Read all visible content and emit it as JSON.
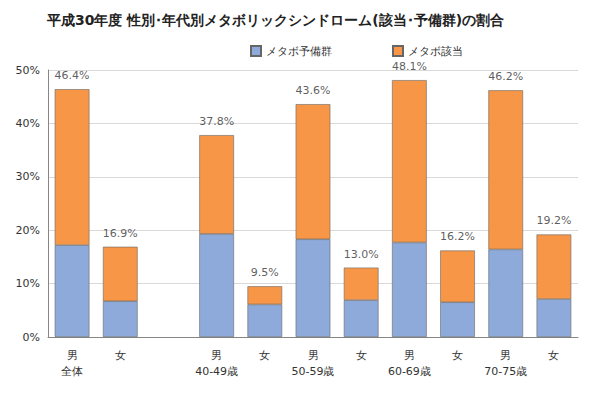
{
  "chart_data": {
    "type": "bar",
    "title": "平成30年度 性別･年代別メタボリックシンドローム(該当･予備群)の割合",
    "categories": [
      "男\n全体",
      "女",
      null,
      "男\n40-49歳",
      "女",
      "男\n50-59歳",
      "女",
      "男\n60-69歳",
      "女",
      "男\n70-75歳",
      "女"
    ],
    "series": [
      {
        "name": "メタボ予備群",
        "color": "#8eaadb",
        "values": [
          17.2,
          6.7,
          null,
          19.3,
          6.1,
          18.3,
          6.9,
          17.7,
          6.5,
          16.4,
          7.1
        ]
      },
      {
        "name": "メタボ該当",
        "color": "#f79646",
        "values": [
          29.2,
          10.2,
          null,
          18.5,
          3.4,
          25.3,
          6.1,
          30.4,
          9.7,
          29.8,
          12.1
        ]
      }
    ],
    "totals": {
      "values": [
        46.4,
        16.9,
        null,
        37.8,
        9.5,
        43.6,
        13.0,
        48.1,
        16.2,
        46.2,
        19.2
      ],
      "value_labels": [
        "46.4%",
        "16.9%",
        null,
        "37.8%",
        "9.5%",
        "43.6%",
        "13.0%",
        "48.1%",
        "16.2%",
        "46.2%",
        "19.2%"
      ]
    },
    "stacked": true,
    "data_labels": true,
    "ylim": [
      0,
      50
    ],
    "yticks": [
      {
        "value": 0,
        "label": "0%"
      },
      {
        "value": 10,
        "label": "10%"
      },
      {
        "value": 20,
        "label": "20%"
      },
      {
        "value": 30,
        "label": "30%"
      },
      {
        "value": 40,
        "label": "40%"
      },
      {
        "value": 50,
        "label": "50%"
      }
    ],
    "grid": true,
    "legend": "top"
  }
}
